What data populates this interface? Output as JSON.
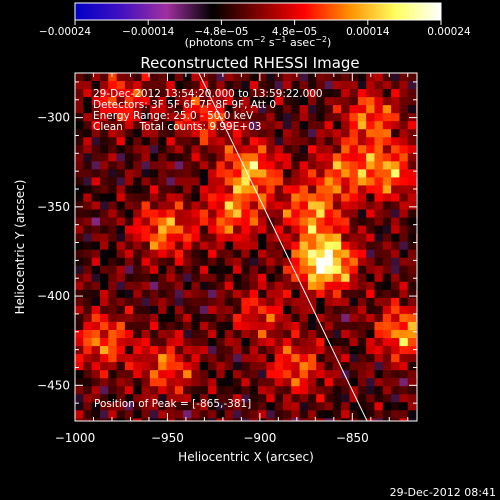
{
  "chart_data": {
    "type": "heatmap",
    "title": "Reconstructed RHESSI Image",
    "xlabel": "Heliocentric X (arcsec)",
    "ylabel": "Heliocentric Y (arcsec)",
    "xlim": [
      -1000,
      -815
    ],
    "ylim": [
      -470,
      -275
    ],
    "x_ticks": [
      -1000,
      -950,
      -900,
      -850
    ],
    "x_tick_labels": [
      "−1000",
      "−950",
      "−900",
      "−850"
    ],
    "y_ticks": [
      -300,
      -350,
      -400,
      -450
    ],
    "y_tick_labels": [
      "−300",
      "−350",
      "−400",
      "−450"
    ],
    "colorbar": {
      "min": -0.00024,
      "max": 0.00024,
      "colors": [
        "#0000c8",
        "#4010c0",
        "#a030a0",
        "#000000",
        "#800000",
        "#ff0000",
        "#ff9000",
        "#ffff60",
        "#ffffff"
      ],
      "tick_labels": [
        "−0.00024",
        "−0.00014",
        "−4.8e−05",
        "4.8e−05",
        "0.00014",
        "0.00024"
      ],
      "unit_main": "(photons cm",
      "unit_sup1": "−2",
      "unit_mid": " s",
      "unit_sup2": "−1",
      "unit_end": " asec",
      "unit_sup3": "−2",
      "unit_close": ")"
    },
    "info_lines": [
      "29-Dec-2012 13:54:20.000 to 13:59:22.000",
      "Detectors: 3F 5F 6F 7F 8F 9F, Att 0",
      "Energy Range: 25.0 - 50.0 keV",
      "Clean     Total counts: 9.99E+03"
    ],
    "peak_label": "Position of Peak = [-865,-381]",
    "peak": {
      "x": -865,
      "y": -381
    },
    "limb_line": [
      {
        "x": -933,
        "y": -275
      },
      {
        "x": -842,
        "y": -470
      }
    ],
    "sources": [
      {
        "x": -865,
        "y": -381,
        "amp": 1.0
      },
      {
        "x": -872,
        "y": -352,
        "amp": 0.55
      },
      {
        "x": -855,
        "y": -330,
        "amp": 0.45
      },
      {
        "x": -905,
        "y": -330,
        "amp": 0.65
      },
      {
        "x": -915,
        "y": -355,
        "amp": 0.5
      },
      {
        "x": -952,
        "y": -363,
        "amp": 0.55
      },
      {
        "x": -985,
        "y": -425,
        "amp": 0.5
      },
      {
        "x": -950,
        "y": -440,
        "amp": 0.45
      },
      {
        "x": -830,
        "y": -330,
        "amp": 0.55
      },
      {
        "x": -822,
        "y": -420,
        "amp": 0.6
      },
      {
        "x": -880,
        "y": -440,
        "amp": 0.45
      },
      {
        "x": -840,
        "y": -300,
        "amp": 0.5
      },
      {
        "x": -930,
        "y": -300,
        "amp": 0.4
      },
      {
        "x": -975,
        "y": -290,
        "amp": 0.4
      },
      {
        "x": -900,
        "y": -410,
        "amp": 0.35
      }
    ]
  },
  "footer": {
    "timestamp": "29-Dec-2012 08:41"
  }
}
